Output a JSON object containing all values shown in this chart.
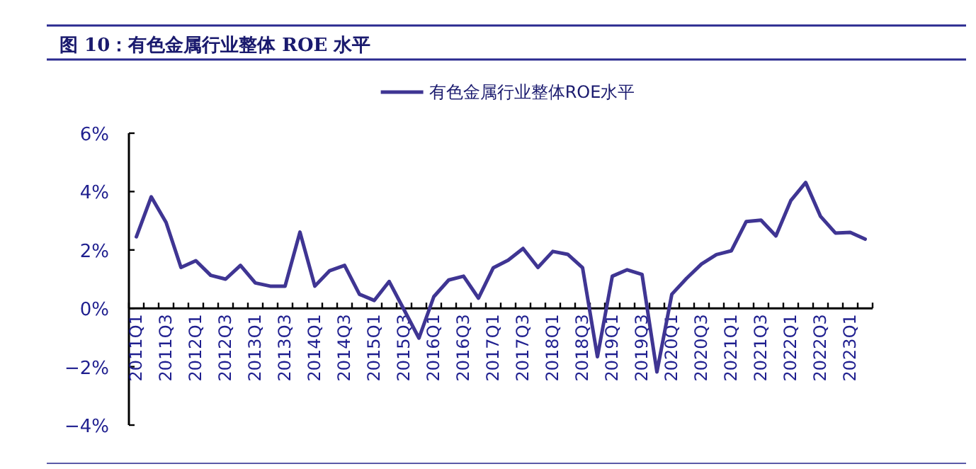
{
  "chart_data": {
    "type": "line",
    "title": "图 10：有色金属行业整体 ROE 水平",
    "categories": [
      "2011Q1",
      null,
      "2011Q3",
      null,
      "2012Q1",
      null,
      "2012Q3",
      null,
      "2013Q1",
      null,
      "2013Q3",
      null,
      "2014Q1",
      null,
      "2014Q3",
      null,
      "2015Q1",
      null,
      "2015Q3",
      null,
      "2016Q1",
      null,
      "2016Q3",
      null,
      "2017Q1",
      null,
      "2017Q3",
      null,
      "2018Q1",
      null,
      "2018Q3",
      null,
      "2019Q1",
      null,
      "2019Q3",
      null,
      "2020Q1",
      null,
      "2020Q3",
      null,
      "2021Q1",
      null,
      "2021Q3",
      null,
      "2022Q1",
      null,
      "2022Q3",
      null,
      "2023Q1",
      null
    ],
    "series": [
      {
        "name": "有色金属行业整体ROE水平",
        "color": "#3f3593",
        "values": [
          2.45,
          3.82,
          2.94,
          1.4,
          1.63,
          1.13,
          1.0,
          1.47,
          0.87,
          0.76,
          0.76,
          2.61,
          0.76,
          1.29,
          1.47,
          0.48,
          0.27,
          0.92,
          -0.05,
          -1.02,
          0.4,
          0.97,
          1.1,
          0.35,
          1.39,
          1.65,
          2.05,
          1.4,
          1.95,
          1.85,
          1.39,
          -1.66,
          1.1,
          1.32,
          1.16,
          -2.18,
          0.48,
          1.03,
          1.52,
          1.84,
          1.97,
          2.97,
          3.02,
          2.48,
          3.69,
          4.31,
          3.15,
          2.58,
          2.6,
          2.37
        ]
      }
    ],
    "ylim": [
      -4,
      6
    ],
    "yticks": [
      {
        "value": -4,
        "label": "−4%"
      },
      {
        "value": -2,
        "label": "−2%"
      },
      {
        "value": 0,
        "label": "0%"
      },
      {
        "value": 2,
        "label": "2%"
      },
      {
        "value": 4,
        "label": "4%"
      },
      {
        "value": 6,
        "label": "6%"
      }
    ],
    "legend": "top",
    "grid": false,
    "marker": "none",
    "line_style": "solid"
  }
}
